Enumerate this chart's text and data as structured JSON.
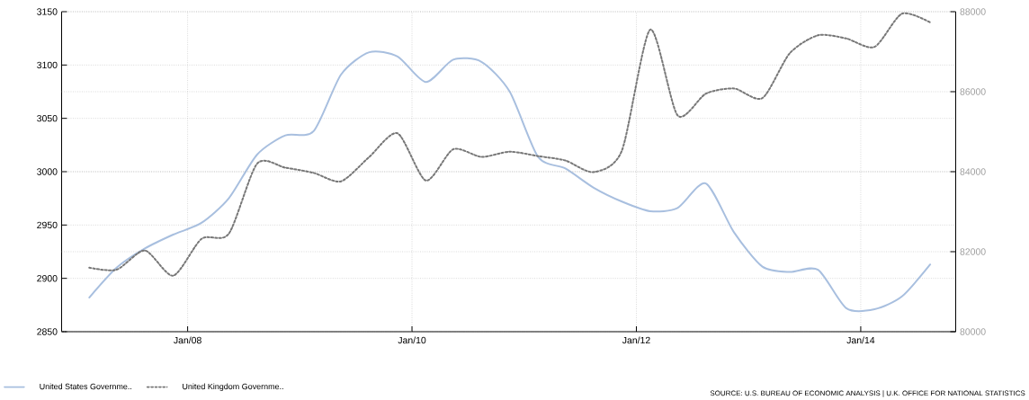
{
  "chart_data": {
    "type": "line",
    "x": [
      "2007-02-15",
      "2007-05-15",
      "2007-08-15",
      "2007-11-15",
      "2008-02-15",
      "2008-05-15",
      "2008-08-15",
      "2008-11-15",
      "2009-02-15",
      "2009-05-15",
      "2009-08-15",
      "2009-11-15",
      "2010-02-15",
      "2010-05-15",
      "2010-08-15",
      "2010-11-15",
      "2011-02-15",
      "2011-05-15",
      "2011-08-15",
      "2011-11-15",
      "2012-02-15",
      "2012-05-15",
      "2012-08-15",
      "2012-11-15",
      "2013-02-15",
      "2013-05-15",
      "2013-08-15",
      "2013-11-15",
      "2014-02-15",
      "2014-05-15",
      "2014-08-15"
    ],
    "series": [
      {
        "name": "United States Governme..",
        "color": "#a8bfdf",
        "line_style": "solid",
        "axis": "y",
        "values": [
          2882,
          2910,
          2928,
          2941,
          2952,
          2975,
          3016,
          3034,
          3038,
          3091,
          3112,
          3108,
          3084,
          3105,
          3103,
          3075,
          3014,
          3003,
          2985,
          2972,
          2963,
          2966,
          2989,
          2943,
          2911,
          2906,
          2908,
          2872,
          2871,
          2883,
          2913
        ]
      },
      {
        "name": "United Kingdom Governme..",
        "color": "#777777",
        "line_style": "dotted",
        "axis": "y2",
        "values": [
          81600,
          81550,
          82030,
          81400,
          82320,
          82450,
          84200,
          84100,
          83970,
          83760,
          84370,
          84960,
          83780,
          84560,
          84370,
          84500,
          84390,
          84280,
          83990,
          84530,
          87550,
          85410,
          85950,
          86080,
          85840,
          86960,
          87410,
          87330,
          87120,
          87950,
          87730
        ]
      }
    ],
    "xlim": [
      "2006-11-17",
      "2014-11-06"
    ],
    "xticks": [
      {
        "value": "2008-01-01",
        "label": "Jan/08"
      },
      {
        "value": "2010-01-01",
        "label": "Jan/10"
      },
      {
        "value": "2012-01-01",
        "label": "Jan/12"
      },
      {
        "value": "2014-01-01",
        "label": "Jan/14"
      }
    ],
    "ylim": [
      2850,
      3150
    ],
    "yticks": [
      2850,
      2900,
      2950,
      3000,
      3050,
      3100,
      3150
    ],
    "y2lim": [
      80000,
      88000
    ],
    "y2ticks": [
      80000,
      82000,
      84000,
      86000,
      88000
    ],
    "grid": true,
    "legend": "bottom left",
    "annotations": [
      "SOURCE: U.S. BUREAU OF ECONOMIC ANALYSIS | U.K. OFFICE FOR NATIONAL STATISTICS"
    ]
  }
}
